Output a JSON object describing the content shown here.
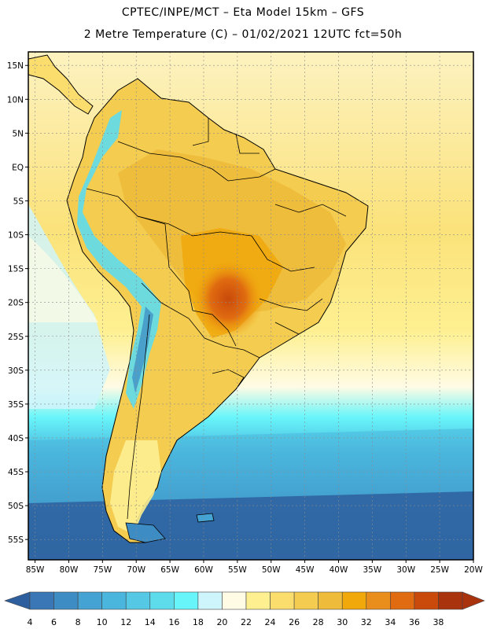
{
  "header": {
    "line1": "CPTEC/INPE/MCT –  Eta Model 15km – GFS",
    "line2": "2 Metre Temperature (C) – 01/02/2021 12UTC fct=50h"
  },
  "map": {
    "lat_labels": [
      "15N",
      "10N",
      "5N",
      "EQ",
      "5S",
      "10S",
      "15S",
      "20S",
      "25S",
      "30S",
      "35S",
      "40S",
      "45S",
      "50S",
      "55S"
    ],
    "lat_values": [
      15,
      10,
      5,
      0,
      -5,
      -10,
      -15,
      -20,
      -25,
      -30,
      -35,
      -40,
      -45,
      -50,
      -55
    ],
    "lon_labels": [
      "85W",
      "80W",
      "75W",
      "70W",
      "65W",
      "60W",
      "55W",
      "50W",
      "45W",
      "40W",
      "35W",
      "30W",
      "25W",
      "20W"
    ],
    "lon_values": [
      -85,
      -80,
      -75,
      -70,
      -65,
      -60,
      -55,
      -50,
      -45,
      -40,
      -35,
      -30,
      -25,
      -20
    ],
    "lon_range": [
      -86,
      -20
    ],
    "lat_range": [
      -58,
      17
    ]
  },
  "colorbar": {
    "labels": [
      "4",
      "6",
      "8",
      "10",
      "12",
      "14",
      "16",
      "18",
      "20",
      "22",
      "24",
      "26",
      "28",
      "30",
      "32",
      "34",
      "36",
      "38"
    ],
    "colors": [
      "#3a77b6",
      "#3d8cc4",
      "#44a3d2",
      "#4bb6dd",
      "#55c8e5",
      "#5edcec",
      "#67f5fa",
      "#cff5fc",
      "#fffbe5",
      "#fef091",
      "#fbdd6e",
      "#f4cc50",
      "#eebb3a",
      "#f0a80b",
      "#e98d1c",
      "#e06b10",
      "#c94a0b",
      "#a8330d"
    ],
    "colors_note": "swatch fill colours"
  }
}
